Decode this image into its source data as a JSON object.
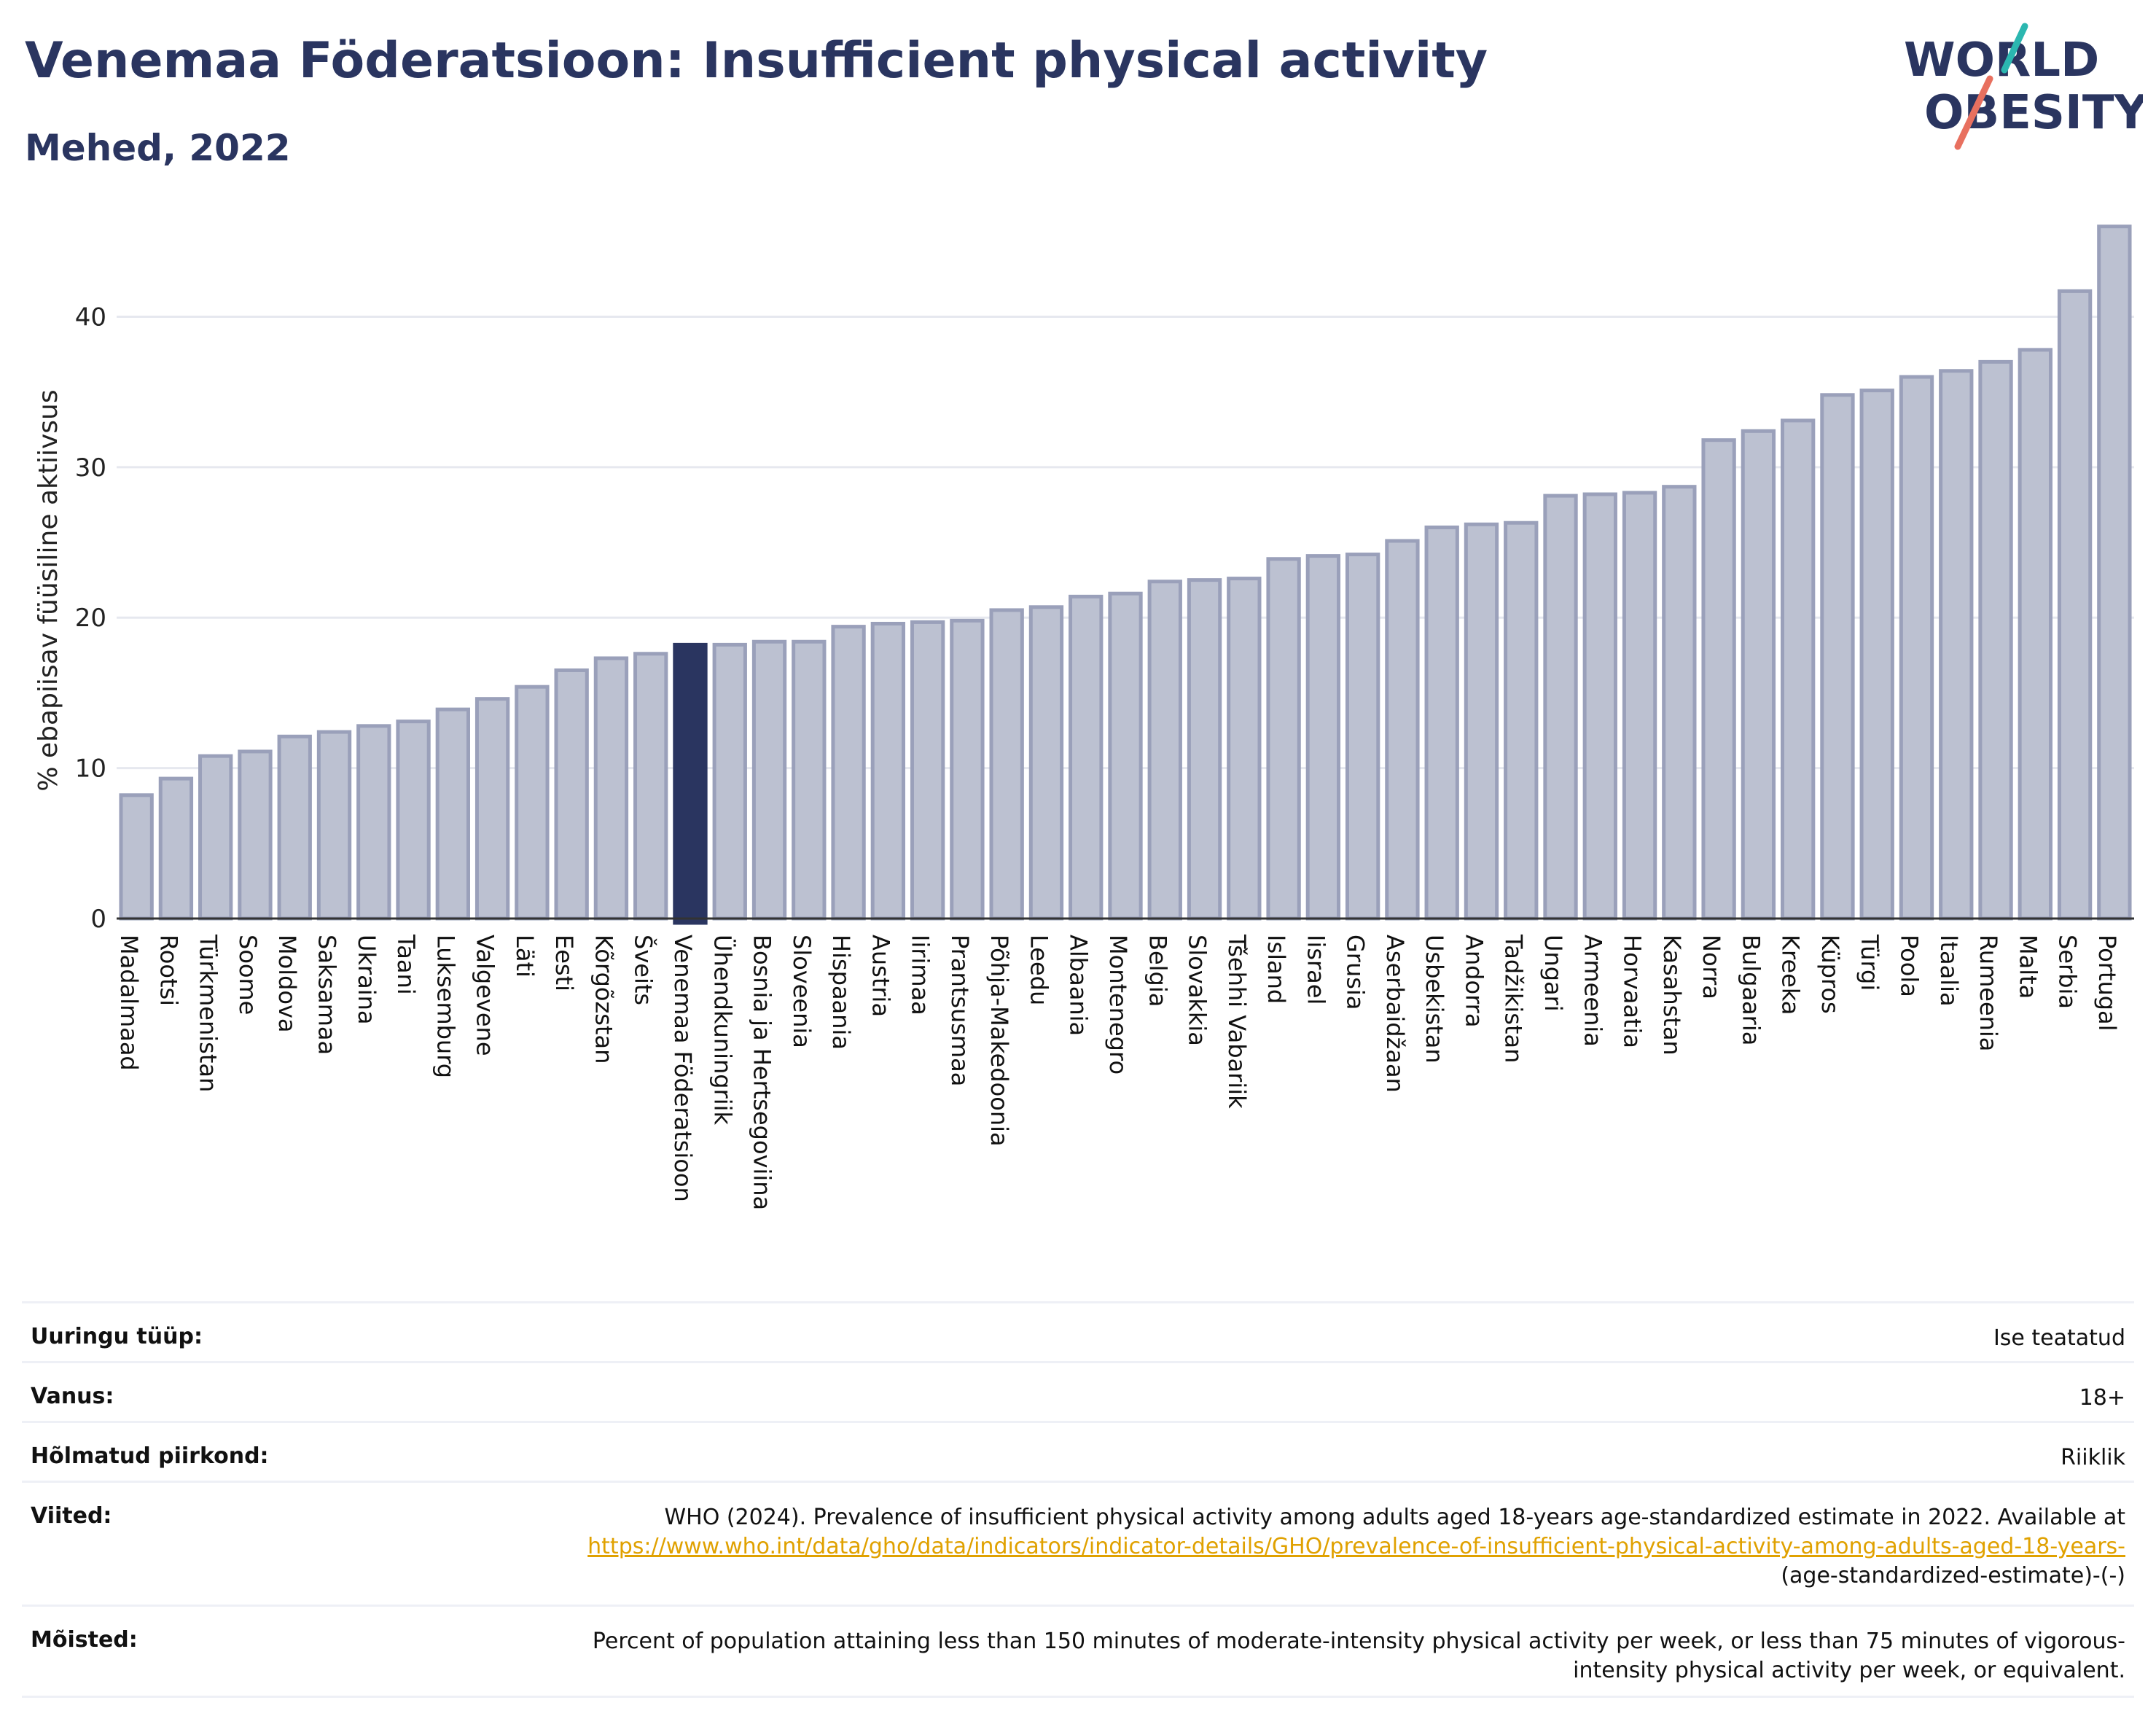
{
  "header": {
    "title": "Venemaa Föderatsioon: Insufficient physical activity",
    "subtitle": "Mehed, 2022"
  },
  "logo": {
    "line1": "WORLD",
    "line2": "OBESITY"
  },
  "colors": {
    "title": "#2a3560",
    "bar_fill": "#bcc1d1",
    "bar_stroke": "#9aa0ba",
    "highlight": "#2a3560",
    "grid": "#e6e8ef",
    "logo_teal": "#2bb7b0",
    "logo_coral": "#e8705f",
    "link": "#e0a100"
  },
  "chart_data": {
    "type": "bar",
    "title": "Venemaa Föderatsioon: Insufficient physical activity",
    "subtitle": "Mehed, 2022",
    "ylabel": "% ebapiisav füüsiline aktiivsus",
    "xlabel": "",
    "ylim": [
      0,
      47
    ],
    "yticks": [
      0,
      10,
      20,
      30,
      40
    ],
    "grid": true,
    "highlight": "Venemaa Föderatsioon",
    "categories": [
      "Madalmaad",
      "Rootsi",
      "Türkmenistan",
      "Soome",
      "Moldova",
      "Saksamaa",
      "Ukraina",
      "Taani",
      "Luksemburg",
      "Valgevene",
      "Läti",
      "Eesti",
      "Kõrgõzstan",
      "Šveits",
      "Venemaa Föderatsioon",
      "Ühendkuningriik",
      "Bosnia ja Hertsegoviina",
      "Sloveenia",
      "Hispaania",
      "Austria",
      "Iirimaa",
      "Prantsusmaa",
      "Põhja-Makedoonia",
      "Leedu",
      "Albaania",
      "Montenegro",
      "Belgia",
      "Slovakkia",
      "Tšehhi Vabariik",
      "Island",
      "Iisrael",
      "Grusia",
      "Aserbaidžaan",
      "Usbekistan",
      "Andorra",
      "Tadžikistan",
      "Ungari",
      "Armeenia",
      "Horvaatia",
      "Kasahstan",
      "Norra",
      "Bulgaaria",
      "Kreeka",
      "Küpros",
      "Türgi",
      "Poola",
      "Itaalia",
      "Rumeenia",
      "Malta",
      "Serbia",
      "Portugal"
    ],
    "values": [
      8.2,
      9.3,
      10.8,
      11.1,
      12.1,
      12.4,
      12.8,
      13.1,
      13.9,
      14.6,
      15.4,
      16.5,
      17.3,
      17.6,
      18.2,
      18.2,
      18.4,
      18.4,
      19.4,
      19.6,
      19.7,
      19.8,
      20.5,
      20.7,
      21.4,
      21.6,
      22.4,
      22.5,
      22.6,
      23.9,
      24.1,
      24.2,
      25.1,
      26.0,
      26.2,
      26.3,
      28.1,
      28.2,
      28.3,
      28.7,
      31.8,
      32.4,
      33.1,
      34.8,
      35.1,
      36.0,
      36.4,
      37.0,
      37.8,
      41.7,
      46.0
    ]
  },
  "info": {
    "survey_label": "Uuringu tüüp:",
    "survey_value": "Ise teatatud",
    "age_label": "Vanus:",
    "age_value": "18+",
    "region_label": "Hõlmatud piirkond:",
    "region_value": "Riiklik",
    "refs_label": "Viited:",
    "refs_text": "WHO (2024). Prevalence of insufficient physical activity among adults aged 18-years age-standardized estimate in 2022. Available at",
    "refs_link": "https://www.who.int/data/gho/data/indicators/indicator-details/GHO/prevalence-of-insufficient-physical-activity-among-adults-aged-18-years-",
    "refs_tail": "(age-standardized-estimate)-(-)",
    "defs_label": "Mõisted:",
    "defs_text": "Percent of population attaining less than 150 minutes of moderate-intensity physical activity per week, or less than 75 minutes of vigorous-intensity physical activity per week, or equivalent."
  }
}
